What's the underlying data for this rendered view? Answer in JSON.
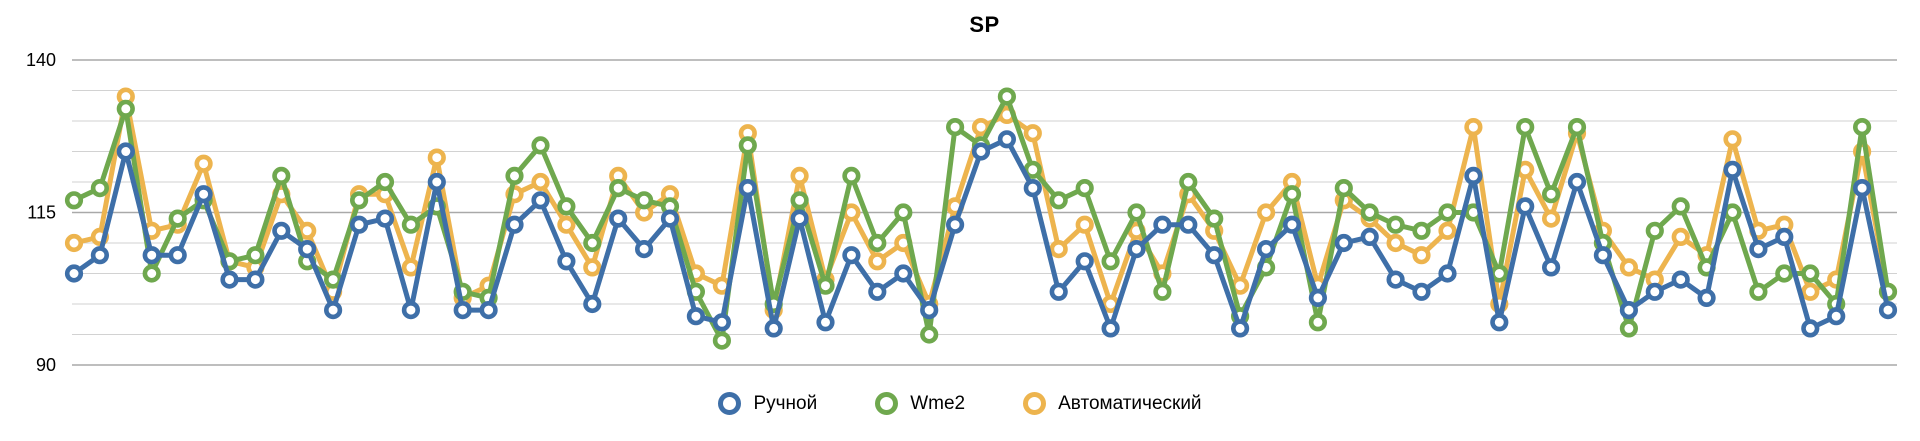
{
  "title": "SP",
  "legend_position": "bottom",
  "chart_data": {
    "type": "line",
    "title": "SP",
    "xlabel": "",
    "ylabel": "",
    "x_tick_labels_visible": false,
    "n_points": 71,
    "y_axis": {
      "min": 90,
      "max": 140,
      "grid_step": 5,
      "labeled_ticks": [
        140,
        115,
        90
      ]
    },
    "grid": "horizontal",
    "legend_position": "bottom",
    "marker_style": "open-circle",
    "series": [
      {
        "name": "Ручной",
        "color": "#3e6fa8",
        "values": [
          105,
          108,
          125,
          108,
          108,
          118,
          104,
          104,
          112,
          109,
          99,
          113,
          114,
          99,
          120,
          99,
          99,
          113,
          117,
          107,
          100,
          114,
          109,
          114,
          98,
          97,
          119,
          96,
          114,
          97,
          108,
          102,
          105,
          99,
          113,
          125,
          127,
          119,
          102,
          107,
          96,
          109,
          113,
          113,
          108,
          96,
          109,
          113,
          101,
          110,
          111,
          104,
          102,
          105,
          121,
          97,
          116,
          106,
          120,
          108,
          99,
          102,
          104,
          101,
          122,
          109,
          111,
          96,
          98,
          119,
          99
        ]
      },
      {
        "name": "Wme2",
        "color": "#6fa84e",
        "values": [
          117,
          119,
          132,
          105,
          114,
          117,
          107,
          108,
          121,
          107,
          104,
          117,
          120,
          113,
          116,
          102,
          101,
          121,
          126,
          116,
          110,
          119,
          117,
          116,
          102,
          94,
          126,
          100,
          117,
          103,
          121,
          110,
          115,
          95,
          129,
          126,
          134,
          122,
          117,
          119,
          107,
          115,
          102,
          120,
          114,
          98,
          106,
          118,
          97,
          119,
          115,
          113,
          112,
          115,
          115,
          105,
          129,
          118,
          129,
          110,
          96,
          112,
          116,
          106,
          115,
          102,
          105,
          105,
          100,
          129,
          102
        ]
      },
      {
        "name": "Автоматический",
        "color": "#edb44e",
        "values": [
          110,
          111,
          134,
          112,
          113,
          123,
          107,
          106,
          118,
          112,
          102,
          118,
          118,
          106,
          124,
          101,
          103,
          118,
          120,
          113,
          106,
          121,
          115,
          118,
          105,
          103,
          128,
          99,
          121,
          104,
          115,
          107,
          110,
          100,
          116,
          129,
          131,
          128,
          109,
          113,
          100,
          112,
          105,
          118,
          112,
          103,
          115,
          120,
          103,
          117,
          114,
          110,
          108,
          112,
          129,
          100,
          122,
          114,
          128,
          112,
          106,
          104,
          111,
          108,
          127,
          112,
          113,
          102,
          104,
          125,
          102
        ]
      }
    ]
  },
  "style": {
    "major_grid_color": "#a9a9a9",
    "minor_grid_color": "#d2d2d2",
    "tick_label_color": "#000000",
    "background": "#ffffff"
  }
}
